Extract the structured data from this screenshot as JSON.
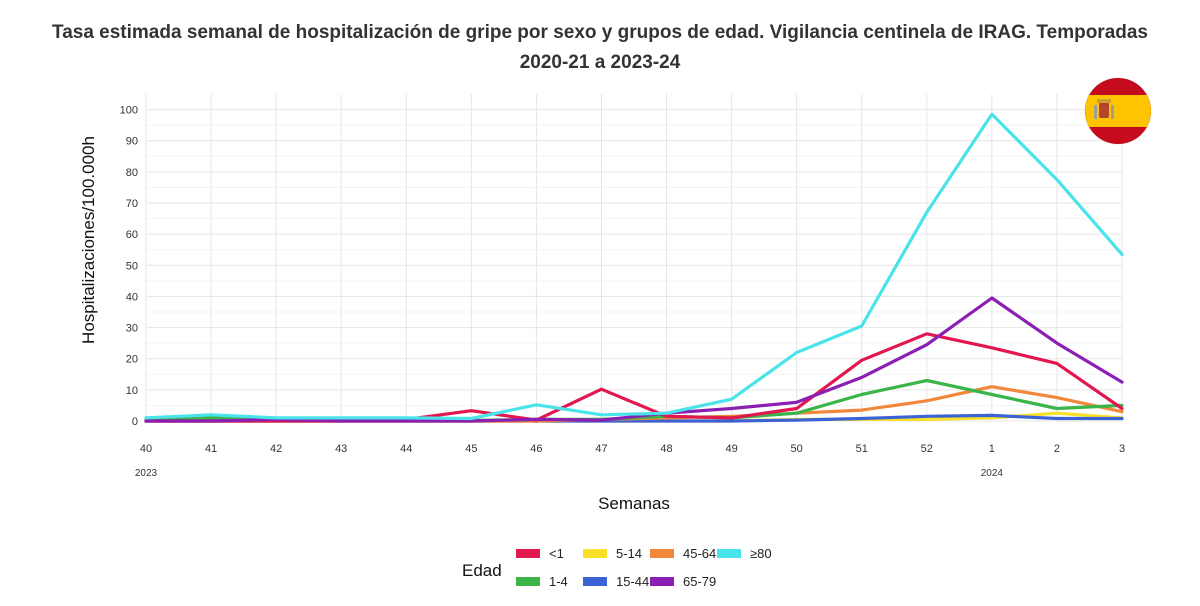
{
  "chart_data": {
    "type": "line",
    "title_line1": "Tasa estimada semanal de hospitalización de gripe por sexo y grupos de edad. Vigilancia centinela de IRAG. Temporadas",
    "title_line2": "2020-21 a 2023-24",
    "xlabel": "Semanas",
    "ylabel": "Hospitalizaciones/100.000h",
    "categories": [
      "40",
      "41",
      "42",
      "43",
      "44",
      "45",
      "46",
      "47",
      "48",
      "49",
      "50",
      "51",
      "52",
      "1",
      "2",
      "3"
    ],
    "year_labels": [
      {
        "category": "40",
        "label": "2023"
      },
      {
        "category": "1",
        "label": "2024"
      }
    ],
    "ylim": [
      0,
      105
    ],
    "yticks": [
      0,
      10,
      20,
      30,
      40,
      50,
      60,
      70,
      80,
      90,
      100
    ],
    "grid": true,
    "legend_title": "Edad",
    "legend_position": "bottom",
    "series": [
      {
        "name": "<1",
        "color": "#e3174f",
        "values": [
          0,
          0,
          0,
          0,
          0.5,
          3.3,
          0.3,
          10.2,
          1.5,
          1.0,
          4.0,
          19.5,
          28.0,
          23.5,
          18.5,
          4.0
        ]
      },
      {
        "name": "1-4",
        "color": "#3bb54a",
        "values": [
          0.3,
          1.0,
          0.3,
          0.2,
          0.2,
          0.2,
          0.5,
          0.5,
          1.5,
          1.0,
          2.5,
          8.5,
          13.0,
          8.5,
          4.0,
          5.0
        ]
      },
      {
        "name": "5-14",
        "color": "#f9e02b",
        "values": [
          0,
          0,
          0,
          0,
          0,
          0,
          0,
          0,
          0,
          0,
          0.5,
          0.5,
          0.5,
          1.0,
          2.5,
          1.0
        ]
      },
      {
        "name": "15-44",
        "color": "#3c63d6",
        "values": [
          0,
          0,
          0,
          0,
          0,
          0,
          0,
          0,
          0,
          0,
          0.3,
          0.8,
          1.5,
          1.8,
          0.8,
          0.8
        ]
      },
      {
        "name": "45-64",
        "color": "#f1873a",
        "values": [
          0,
          0,
          0,
          0,
          0,
          0,
          0,
          0.5,
          1.0,
          1.5,
          2.5,
          3.5,
          6.5,
          11.0,
          7.5,
          3.0
        ]
      },
      {
        "name": "65-79",
        "color": "#8b1fb3",
        "values": [
          0,
          0,
          0.5,
          0,
          0,
          0,
          0.5,
          0.3,
          2.5,
          4.0,
          6.0,
          14.0,
          24.5,
          39.5,
          25.0,
          12.5
        ]
      },
      {
        "name": "≥80",
        "color": "#49e3ea",
        "values": [
          1.0,
          2.0,
          1.0,
          1.0,
          1.0,
          0.8,
          5.2,
          2.0,
          2.5,
          7.0,
          22.0,
          30.5,
          67.0,
          98.5,
          77.5,
          53.5
        ]
      }
    ],
    "legend_layout": [
      [
        "<1",
        "5-14",
        "45-64",
        "≥80"
      ],
      [
        "1-4",
        "15-44",
        "65-79"
      ]
    ]
  },
  "flag": {
    "name": "spain-flag-icon",
    "colors": {
      "red": "#c60b1e",
      "yellow": "#ffc400"
    }
  }
}
